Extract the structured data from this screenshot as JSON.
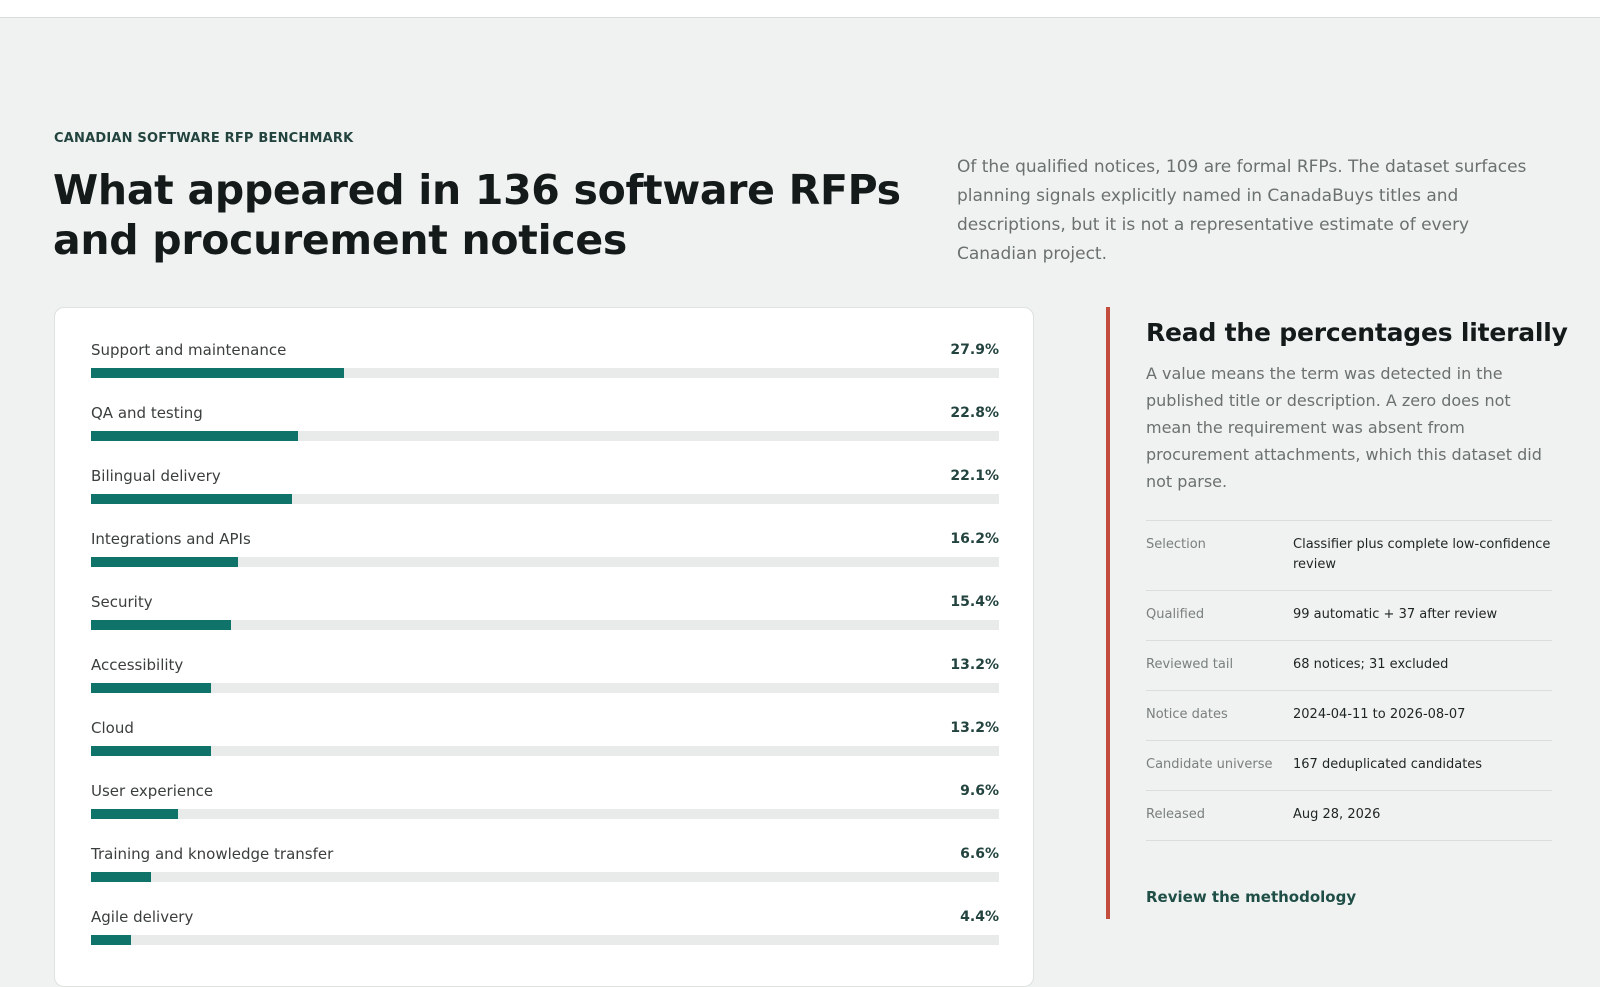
{
  "header": {
    "eyebrow": "CANADIAN SOFTWARE RFP BENCHMARK",
    "title": "What appeared in 136 software RFPs and procurement notices",
    "intro": "Of the qualified notices, 109 are formal RFPs. The dataset surfaces planning signals explicitly named in CanadaBuys titles and descriptions, but it is not a representative estimate of every Canadian project."
  },
  "metrics": [
    {
      "label": "Support and maintenance",
      "value_text": "27.9%",
      "percent": 27.9
    },
    {
      "label": "QA and testing",
      "value_text": "22.8%",
      "percent": 22.8
    },
    {
      "label": "Bilingual delivery",
      "value_text": "22.1%",
      "percent": 22.1
    },
    {
      "label": "Integrations and APIs",
      "value_text": "16.2%",
      "percent": 16.2
    },
    {
      "label": "Security",
      "value_text": "15.4%",
      "percent": 15.4
    },
    {
      "label": "Accessibility",
      "value_text": "13.2%",
      "percent": 13.2
    },
    {
      "label": "Cloud",
      "value_text": "13.2%",
      "percent": 13.2
    },
    {
      "label": "User experience",
      "value_text": "9.6%",
      "percent": 9.6
    },
    {
      "label": "Training and knowledge transfer",
      "value_text": "6.6%",
      "percent": 6.6
    },
    {
      "label": "Agile delivery",
      "value_text": "4.4%",
      "percent": 4.4
    }
  ],
  "aside": {
    "title": "Read the percentages literally",
    "body": "A value means the term was detected in the published title or description. A zero does not mean the requirement was absent from procurement attachments, which this dataset did not parse.",
    "facts": [
      {
        "key": "Selection",
        "value": "Classifier plus complete low-confidence review"
      },
      {
        "key": "Qualified",
        "value": "99 automatic + 37 after review"
      },
      {
        "key": "Reviewed tail",
        "value": "68 notices; 31 excluded"
      },
      {
        "key": "Notice dates",
        "value": "2024-04-11 to 2026-08-07"
      },
      {
        "key": "Candidate universe",
        "value": "167 deduplicated candidates"
      },
      {
        "key": "Released",
        "value": "Aug 28, 2026"
      }
    ],
    "link_label": "Review the methodology"
  },
  "colors": {
    "accent": "#10736a",
    "track": "#e8ebe9",
    "rule": "#c44e3e",
    "background": "#eff2f0"
  }
}
